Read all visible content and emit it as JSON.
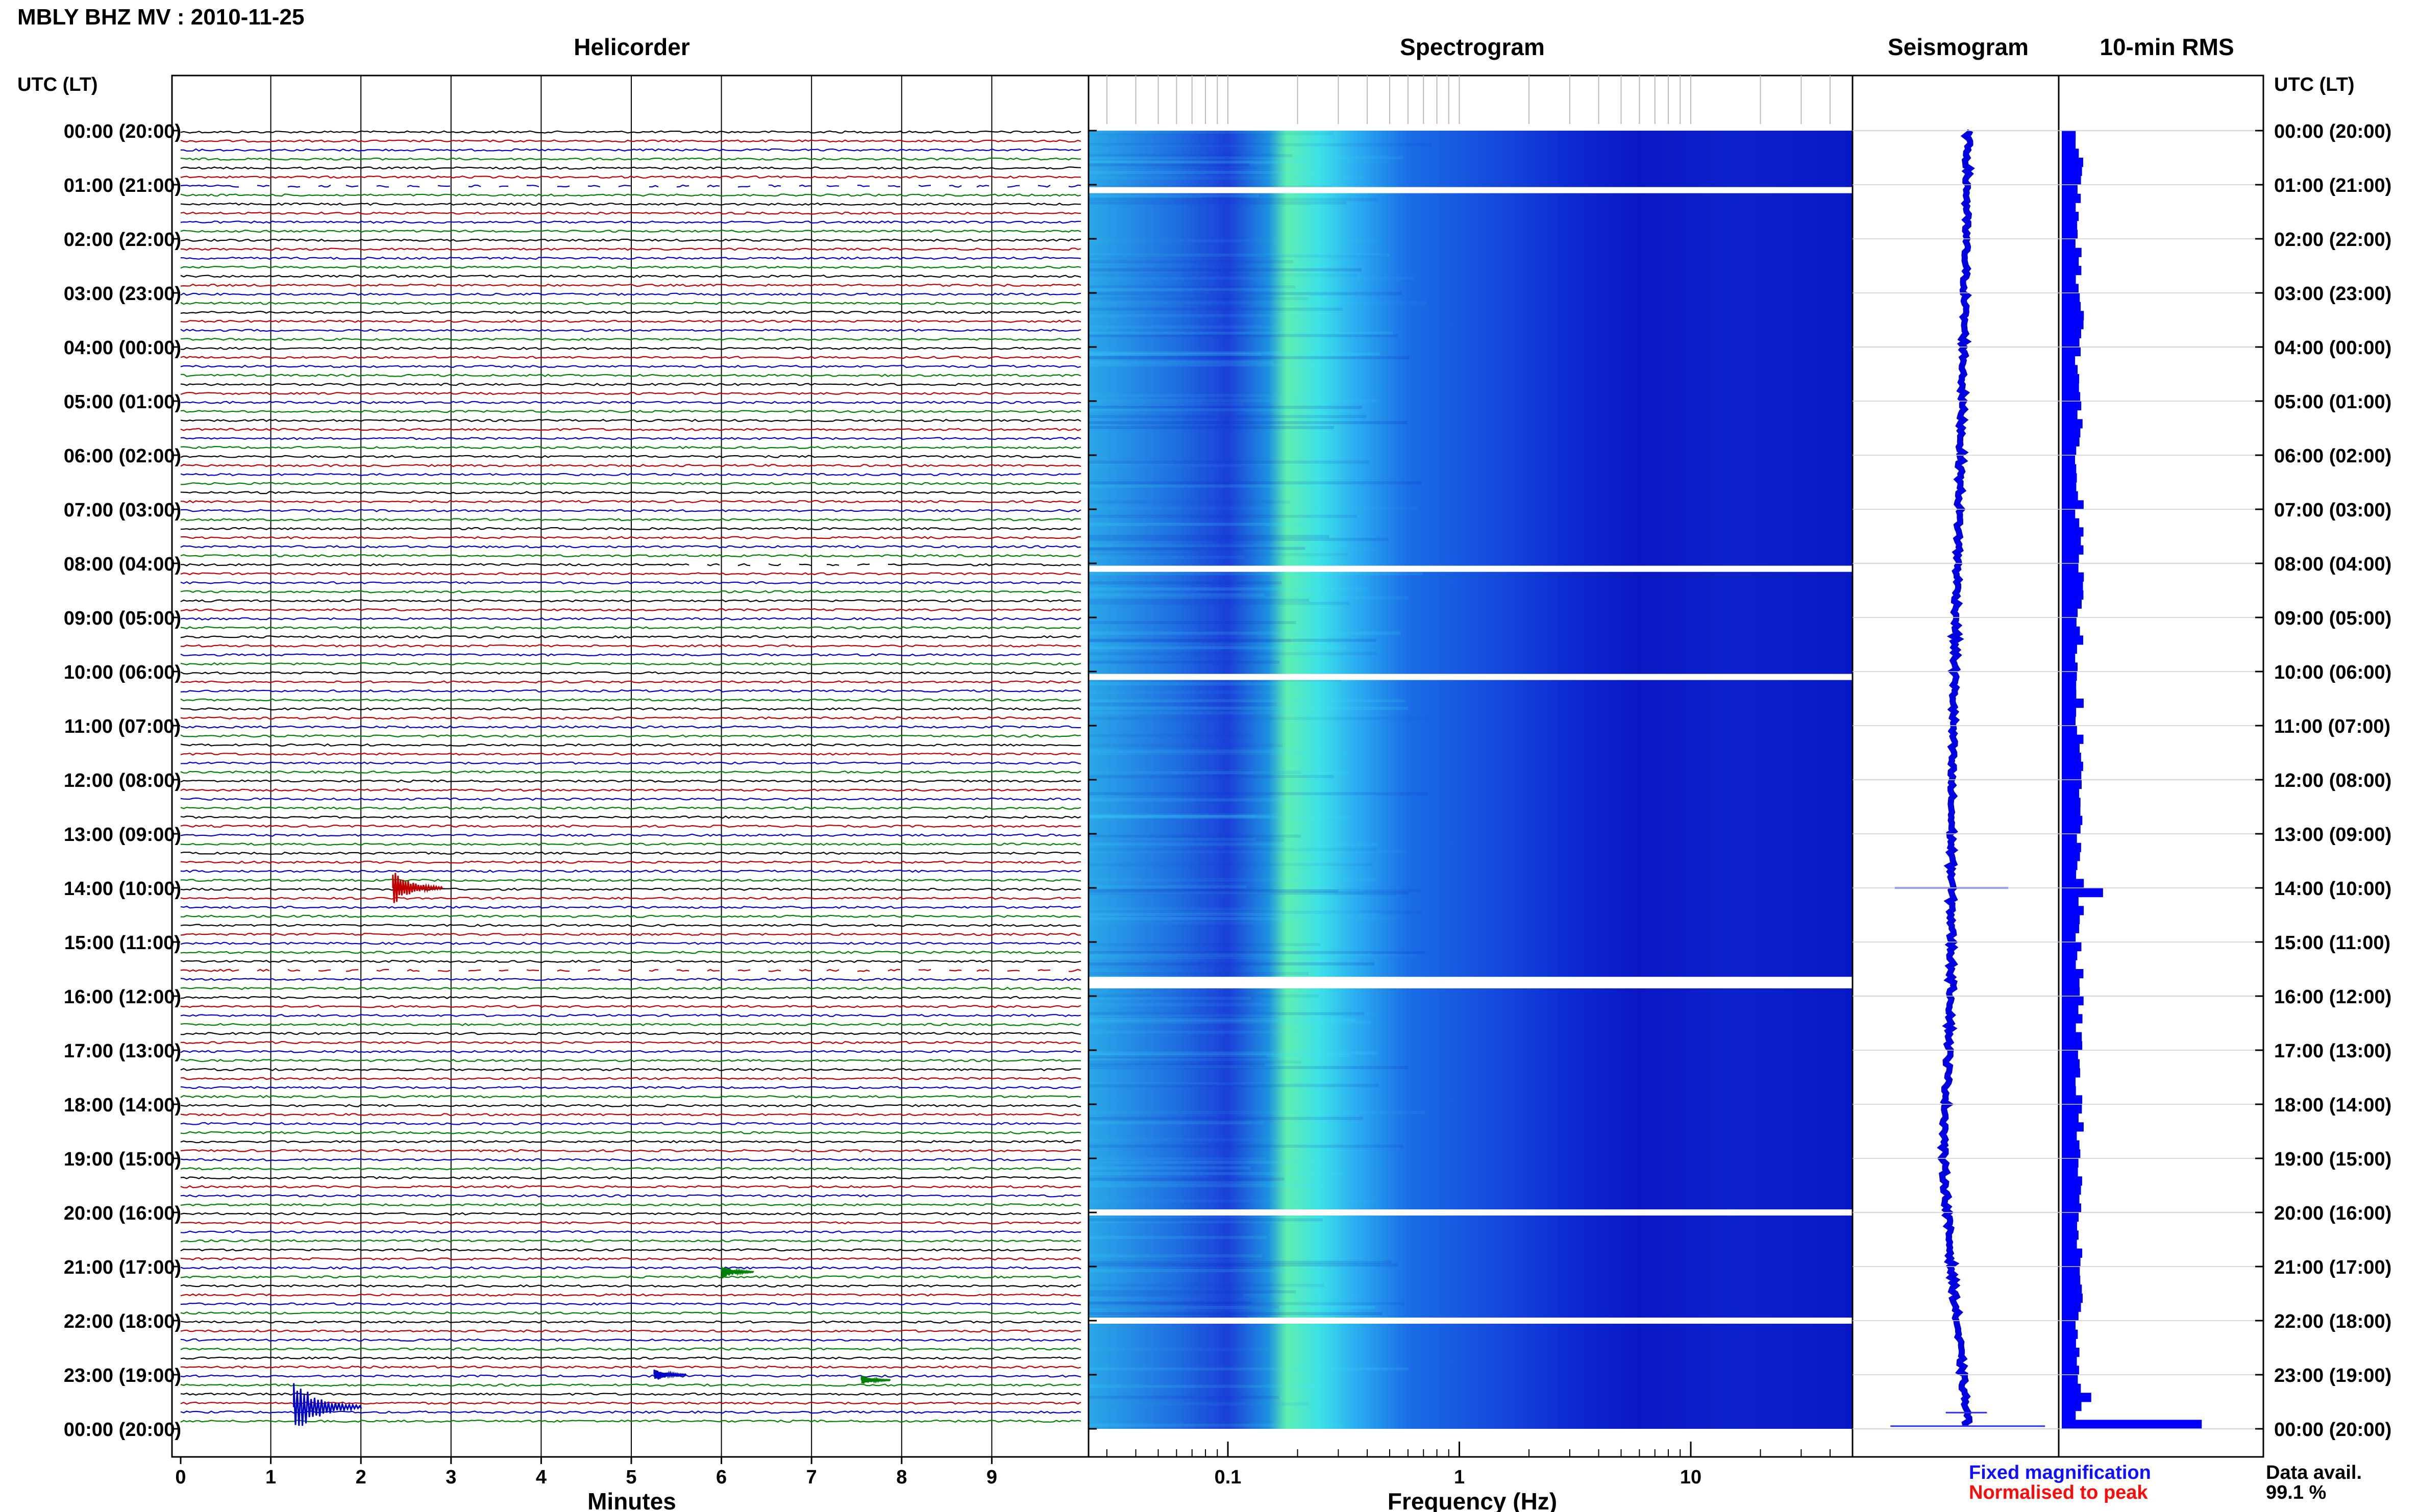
{
  "title": "MBLY BHZ MV : 2010-11-25",
  "time_axis_label": "UTC (LT)",
  "panels": {
    "helicorder": "Helicorder",
    "spectrogram": "Spectrogram",
    "seismogram": "Seismogram",
    "rms": "10-min RMS"
  },
  "x_labels": {
    "helicorder": "Minutes",
    "spectrogram": "Frequency (Hz)"
  },
  "helicorder_ticks": [
    "0",
    "1",
    "2",
    "3",
    "4",
    "5",
    "6",
    "7",
    "8",
    "9"
  ],
  "spectrogram_ticks": [
    {
      "value": 0.1,
      "label": "0.1"
    },
    {
      "value": 1,
      "label": "1"
    },
    {
      "value": 10,
      "label": "10"
    }
  ],
  "time_labels": [
    "00:00 (20:00)",
    "01:00 (21:00)",
    "02:00 (22:00)",
    "03:00 (23:00)",
    "04:00 (00:00)",
    "05:00 (01:00)",
    "06:00 (02:00)",
    "07:00 (03:00)",
    "08:00 (04:00)",
    "09:00 (05:00)",
    "10:00 (06:00)",
    "11:00 (07:00)",
    "12:00 (08:00)",
    "13:00 (09:00)",
    "14:00 (10:00)",
    "15:00 (11:00)",
    "16:00 (12:00)",
    "17:00 (13:00)",
    "18:00 (14:00)",
    "19:00 (15:00)",
    "20:00 (16:00)",
    "21:00 (17:00)",
    "22:00 (18:00)",
    "23:00 (19:00)",
    "00:00 (20:00)"
  ],
  "legend": {
    "fixed": "Fixed magnification",
    "normalised": "Normalised to peak",
    "availability_label": "Data avail.",
    "availability_value": "99.1 %"
  },
  "colors": {
    "trace_black": "#000000",
    "trace_red": "#c00000",
    "trace_blue": "#0000c8",
    "trace_green": "#008000",
    "spectrogram_low": "#0a14d2",
    "spectrogram_high": "#3cf0ff",
    "rms_bar": "#0000ff"
  },
  "chart_data": [
    {
      "type": "line",
      "panel": "Helicorder",
      "xlabel": "Minutes",
      "xlim": [
        0,
        10
      ],
      "rows_per_hour": 6,
      "row_colors": [
        "black",
        "red",
        "blue",
        "green"
      ],
      "gaps": [
        {
          "hour": 1.0,
          "row": 0,
          "from_min": 0.5,
          "to_min": 10
        },
        {
          "hour": 8.0,
          "row": 0,
          "from_min": 5.5,
          "to_min": 8
        },
        {
          "hour": 15.5,
          "row": 0,
          "from_min": 0.5,
          "to_min": 10
        }
      ],
      "events": [
        {
          "hour": 14.0,
          "minute": 2.4,
          "color": "red",
          "amplitude": 1.0
        },
        {
          "hour": 21.1,
          "minute": 6.05,
          "color": "green",
          "amplitude": 0.4
        },
        {
          "hour": 23.0,
          "minute": 5.3,
          "color": "blue",
          "amplitude": 0.4
        },
        {
          "hour": 23.1,
          "minute": 7.6,
          "color": "green",
          "amplitude": 0.3
        },
        {
          "hour": 23.6,
          "minute": 1.3,
          "color": "blue",
          "amplitude": 1.6
        }
      ]
    },
    {
      "type": "heatmap",
      "panel": "Spectrogram",
      "xlabel": "Frequency (Hz)",
      "xscale": "log",
      "xlim": [
        0.025,
        50
      ],
      "peak_band_hz": [
        0.18,
        0.35
      ],
      "gaps_hours": [
        1.1,
        8.1,
        10.1,
        15.7,
        15.8,
        20.0,
        22.0
      ]
    },
    {
      "type": "line",
      "panel": "Seismogram",
      "baseline_drift": [
        {
          "hour": 0,
          "offset": 0.0
        },
        {
          "hour": 4,
          "offset": -0.02
        },
        {
          "hour": 8,
          "offset": -0.05
        },
        {
          "hour": 12,
          "offset": -0.08
        },
        {
          "hour": 16,
          "offset": -0.08
        },
        {
          "hour": 19,
          "offset": -0.12
        },
        {
          "hour": 21,
          "offset": -0.08
        },
        {
          "hour": 24,
          "offset": 0.0
        }
      ],
      "spikes": [
        {
          "hour": 14.0,
          "width": 0.55
        },
        {
          "hour": 23.7,
          "width": 0.2
        },
        {
          "hour": 23.95,
          "width": 0.75
        }
      ]
    },
    {
      "type": "bar",
      "panel": "10-min RMS",
      "orientation": "horizontal",
      "interval_minutes": 10,
      "typical_relative": 0.12,
      "peaks": [
        {
          "hour": 14.0,
          "relative": 0.28
        },
        {
          "hour": 23.3,
          "relative": 0.2
        },
        {
          "hour": 23.9,
          "relative": 0.95
        }
      ]
    }
  ]
}
